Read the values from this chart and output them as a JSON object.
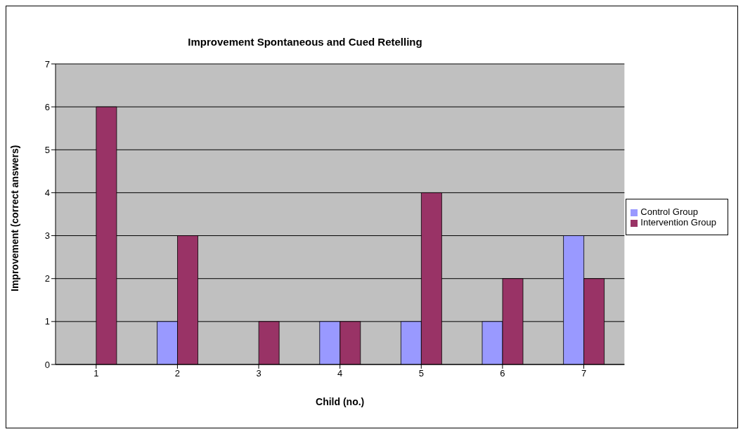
{
  "chart_data": {
    "type": "bar",
    "title": "Improvement Spontaneous and Cued Retelling",
    "xlabel": "Child (no.)",
    "ylabel": "Improvement (correct answers)",
    "categories": [
      "1",
      "2",
      "3",
      "4",
      "5",
      "6",
      "7"
    ],
    "series": [
      {
        "name": "Control Group",
        "color": "#9999ff",
        "values": [
          0,
          1,
          0,
          1,
          1,
          1,
          3
        ]
      },
      {
        "name": "Intervention Group",
        "color": "#993366",
        "values": [
          6,
          3,
          1,
          1,
          4,
          2,
          2
        ]
      }
    ],
    "ylim": [
      0,
      7
    ],
    "yticks": [
      0,
      1,
      2,
      3,
      4,
      5,
      6,
      7
    ],
    "grid": "y",
    "legend": "right"
  }
}
